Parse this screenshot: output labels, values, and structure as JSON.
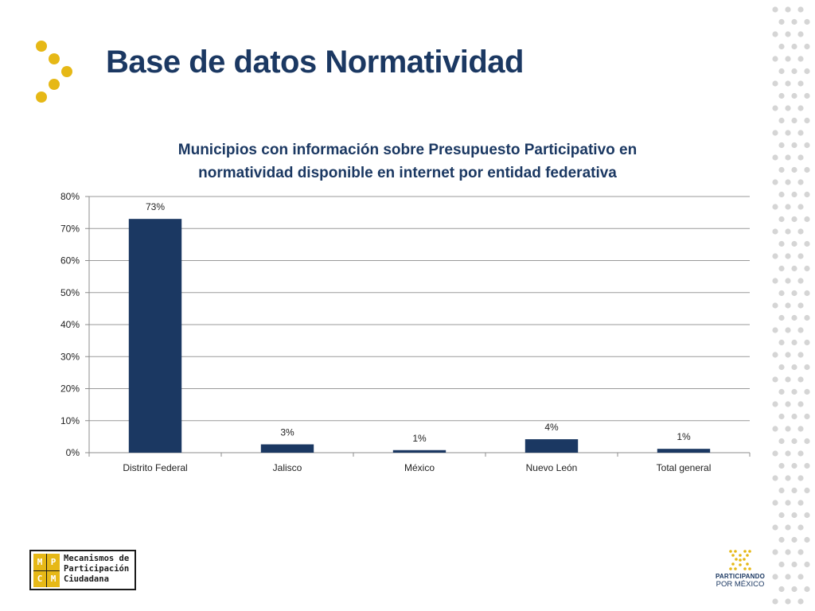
{
  "slide": {
    "title": "Base de datos Normatividad"
  },
  "chart_data": {
    "type": "bar",
    "title_lines": [
      "Municipios con información sobre Presupuesto Participativo en",
      "normatividad disponible en internet por entidad federativa"
    ],
    "categories": [
      "Distrito Federal",
      "Jalisco",
      "México",
      "Nuevo León",
      "Total general"
    ],
    "values": [
      73,
      2.6,
      0.8,
      4.2,
      1.2
    ],
    "data_labels": [
      "73%",
      "3%",
      "1%",
      "4%",
      "1%"
    ],
    "yticks": [
      "0%",
      "10%",
      "20%",
      "30%",
      "40%",
      "50%",
      "60%",
      "70%",
      "80%"
    ],
    "ylim": [
      0,
      80
    ],
    "xlabel": "",
    "ylabel": "",
    "grid": true,
    "legend": "none",
    "bar_color": "#1b3862"
  },
  "logos": {
    "left": {
      "letters": [
        "M",
        "P",
        "C",
        "M"
      ],
      "lines": [
        "Mecanismos de",
        "Participación",
        "Ciudadana"
      ]
    },
    "right": {
      "line1": "PARTICIPANDO",
      "line2": "POR MÉXICO"
    }
  },
  "colors": {
    "accent_yellow": "#e6b816",
    "navy": "#1b3862",
    "dot_gray": "#d5d5d5"
  }
}
